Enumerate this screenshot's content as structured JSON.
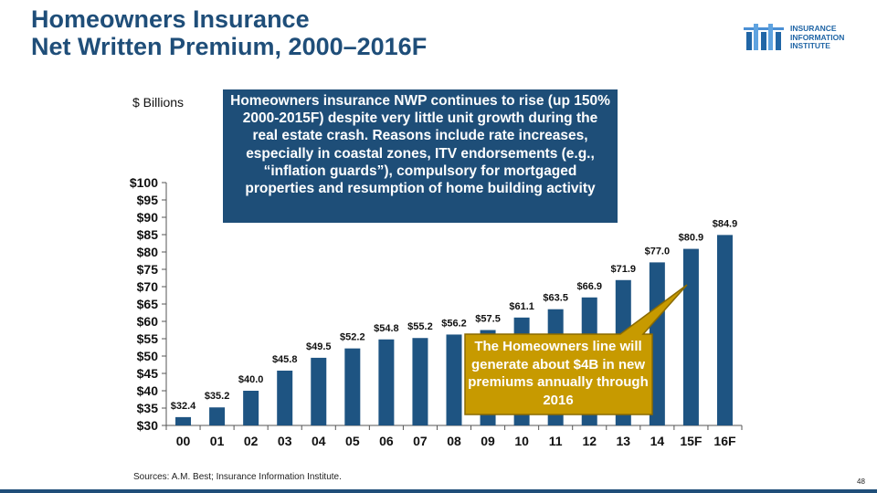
{
  "slide": {
    "title_line1": "Homeowners Insurance",
    "title_line2": "Net Written Premium, 2000–2016F",
    "unit_label": "$ Billions",
    "note": "Homeowners insurance NWP continues to rise (up 150% 2000-2015F) despite very little unit growth during the real estate crash.  Reasons include rate increases, especially in coastal zones, ITV endorsements (e.g., “inflation guards”), compulsory for mortgaged properties and resumption of home building activity",
    "callout": "The Homeowners line will generate about $4B in new premiums annually through 2016",
    "source": "Sources: A.M. Best; Insurance Information Institute.",
    "page_number": "48"
  },
  "logo": {
    "line1": "INSURANCE",
    "line2": "INFORMATION",
    "line3": "INSTITUTE"
  },
  "colors": {
    "title": "#1f4e79",
    "bar": "#1e5482",
    "note_bg": "#1e4e78",
    "callout_bg": "#c79a00",
    "callout_border": "#8a6a00"
  },
  "chart_data": {
    "type": "bar",
    "title": "Homeowners Insurance Net Written Premium, 2000–2016F",
    "ylabel": "$ Billions",
    "xlabel": "",
    "ylim": [
      30,
      100
    ],
    "yticks": [
      30,
      35,
      40,
      45,
      50,
      55,
      60,
      65,
      70,
      75,
      80,
      85,
      90,
      95,
      100
    ],
    "ytick_prefix": "$",
    "categories": [
      "00",
      "01",
      "02",
      "03",
      "04",
      "05",
      "06",
      "07",
      "08",
      "09",
      "10",
      "11",
      "12",
      "13",
      "14",
      "15F",
      "16F"
    ],
    "values": [
      32.4,
      35.2,
      40.0,
      45.8,
      49.5,
      52.2,
      54.8,
      55.2,
      56.2,
      57.5,
      61.1,
      63.5,
      66.9,
      71.9,
      77.0,
      80.9,
      84.9
    ],
    "labels": [
      "$32.4",
      "$35.2",
      "$40.0",
      "$45.8",
      "$49.5",
      "$52.2",
      "$54.8",
      "$55.2",
      "$56.2",
      "$57.5",
      "$61.1",
      "$63.5",
      "$66.9",
      "$71.9",
      "$77.0",
      "$80.9",
      "$84.9"
    ],
    "grid": false,
    "legend": "none"
  }
}
